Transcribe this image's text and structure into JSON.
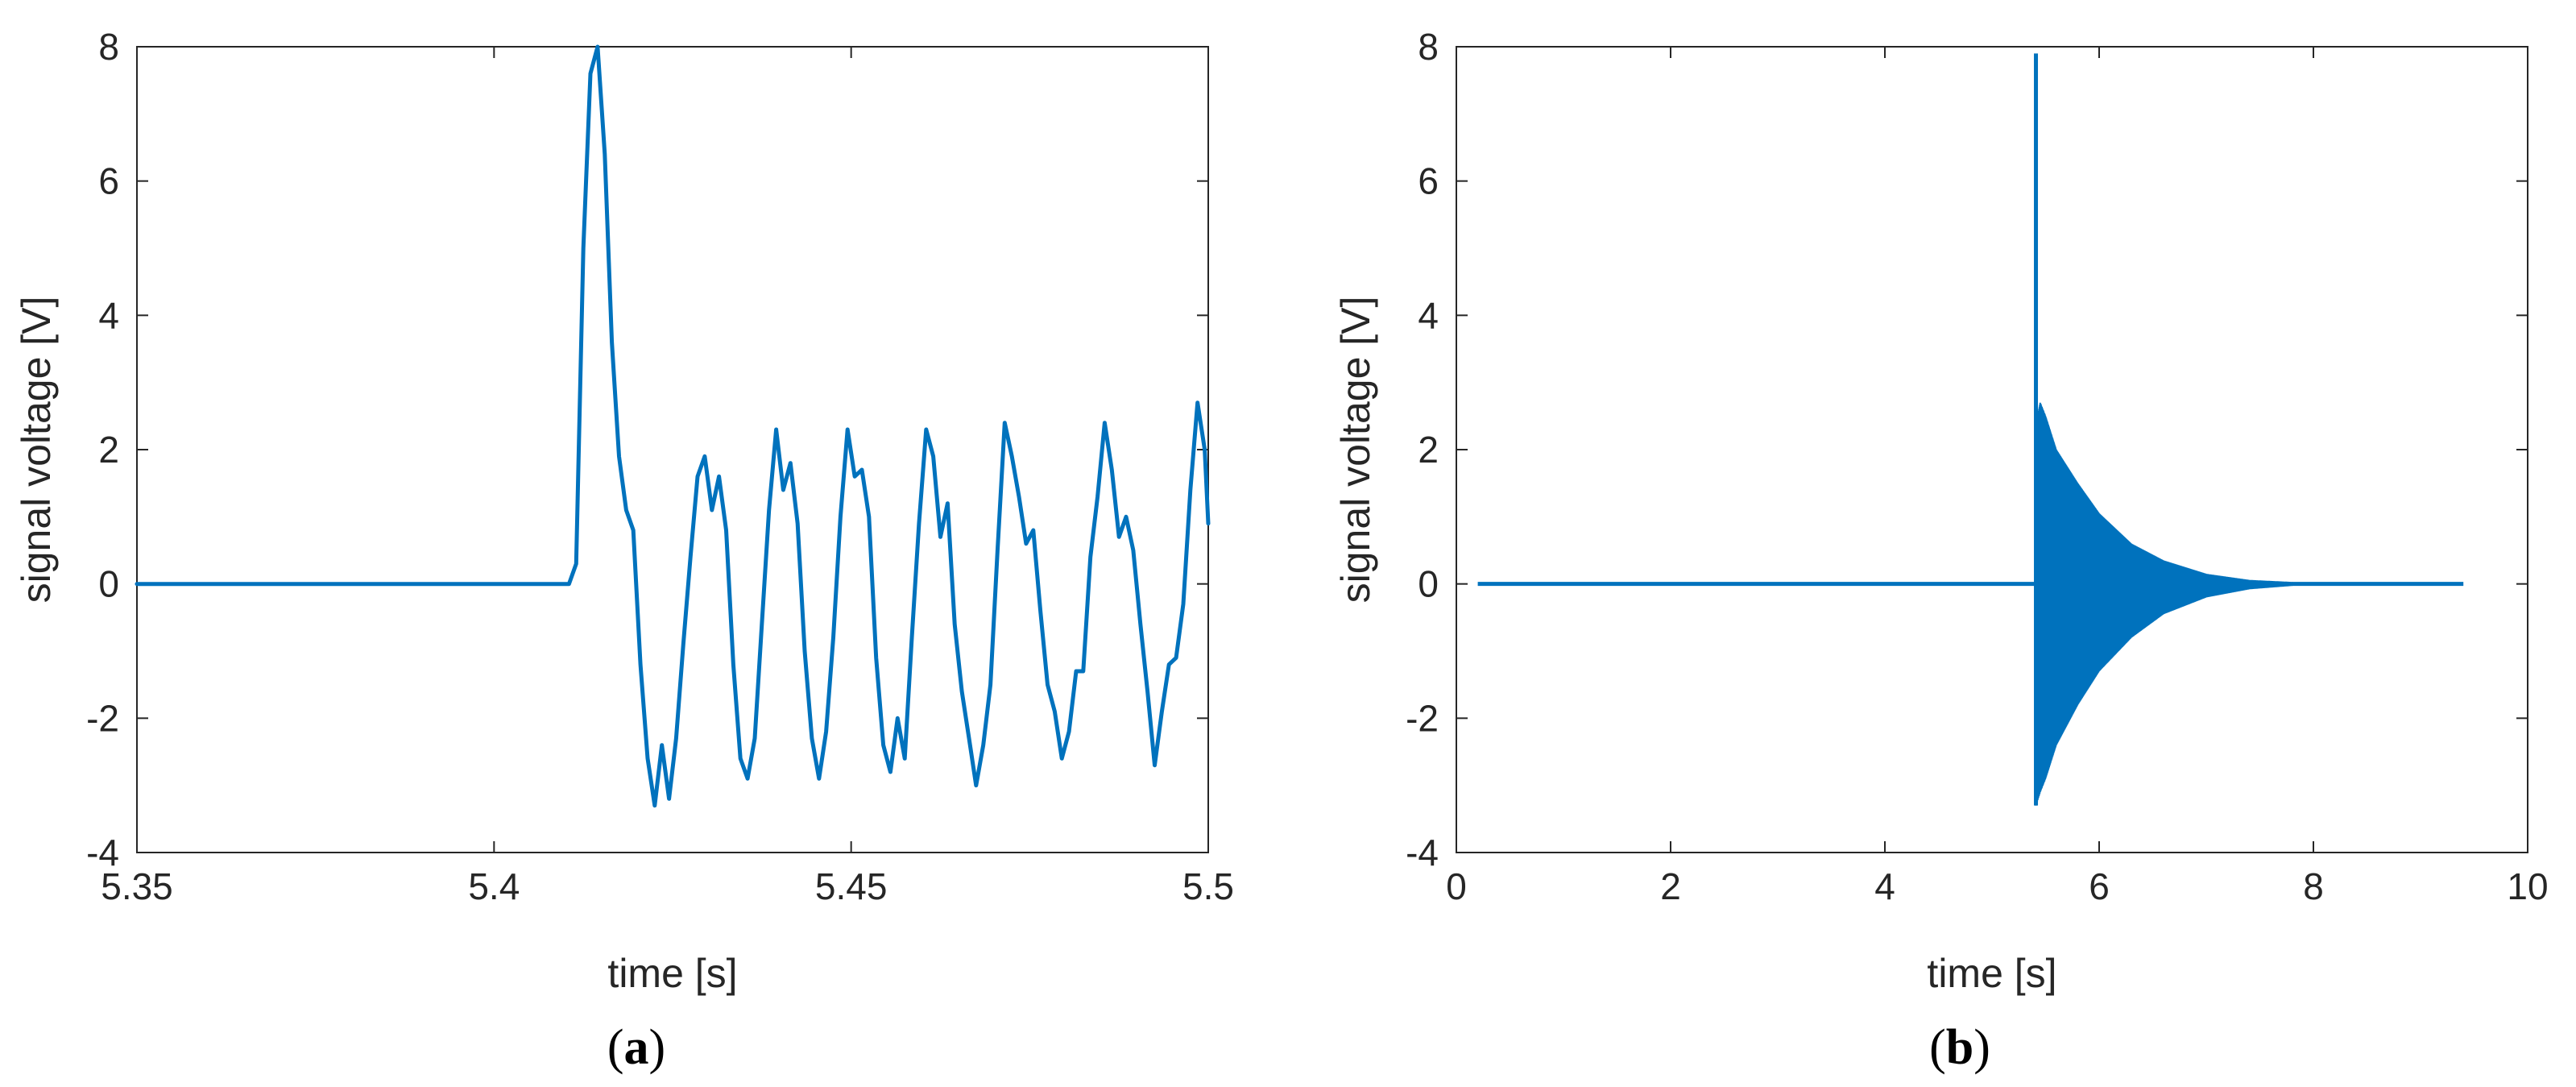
{
  "chart_data": [
    {
      "type": "line",
      "panel_label": "a",
      "xlabel": "time [s]",
      "ylabel": "signal voltage [V]",
      "xlim": [
        5.35,
        5.5
      ],
      "ylim": [
        -4,
        8
      ],
      "xticks": [
        5.35,
        5.4,
        5.45,
        5.5
      ],
      "xtick_labels": [
        "5.35",
        "5.4",
        "5.45",
        "5.5"
      ],
      "yticks": [
        -4,
        -2,
        0,
        2,
        4,
        6,
        8
      ],
      "ytick_labels": [
        "-4",
        "-2",
        "0",
        "2",
        "4",
        "6",
        "8"
      ],
      "grid": false,
      "line_color": "#0072BD",
      "series": [
        {
          "x": [
            5.35,
            5.38,
            5.4105,
            5.4115,
            5.4125,
            5.4135,
            5.4145,
            5.4155,
            5.4165,
            5.4175,
            5.4185,
            5.4195,
            5.4205,
            5.4215,
            5.4225,
            5.4235,
            5.4245,
            5.4255,
            5.4265,
            5.4275,
            5.4285,
            5.4295,
            5.4305,
            5.4315,
            5.4325,
            5.4335,
            5.4345,
            5.4355,
            5.4365,
            5.4375,
            5.4385,
            5.4395,
            5.4405,
            5.4415,
            5.4425,
            5.4435,
            5.4445,
            5.4455,
            5.4465,
            5.4475,
            5.4485,
            5.4495,
            5.4505,
            5.4515,
            5.4525,
            5.4535,
            5.4545,
            5.4555,
            5.4565,
            5.4575,
            5.4585,
            5.4595,
            5.4605,
            5.4615,
            5.4625,
            5.4635,
            5.4645,
            5.4655,
            5.4665,
            5.4675,
            5.4685,
            5.4695,
            5.4705,
            5.4715,
            5.4725,
            5.4735,
            5.4745,
            5.4755,
            5.4765,
            5.4775,
            5.4785,
            5.4795,
            5.4805,
            5.4815,
            5.4825,
            5.4835,
            5.4845,
            5.4855,
            5.4865,
            5.4875,
            5.4885,
            5.4895,
            5.4905,
            5.4915,
            5.4925,
            5.4935,
            5.4945,
            5.4955,
            5.4965,
            5.4975,
            5.4985,
            5.4995,
            5.5
          ],
          "y": [
            0.0,
            0.0,
            0.0,
            0.3,
            5.0,
            7.6,
            8.0,
            6.4,
            3.6,
            1.9,
            1.1,
            0.8,
            -1.2,
            -2.6,
            -3.3,
            -2.4,
            -3.2,
            -2.3,
            -0.9,
            0.4,
            1.6,
            1.9,
            1.1,
            1.6,
            0.8,
            -1.2,
            -2.6,
            -2.9,
            -2.3,
            -0.6,
            1.1,
            2.3,
            1.4,
            1.8,
            0.9,
            -1.0,
            -2.3,
            -2.9,
            -2.2,
            -0.8,
            1.0,
            2.3,
            1.6,
            1.7,
            1.0,
            -1.1,
            -2.4,
            -2.8,
            -2.0,
            -2.6,
            -0.8,
            0.9,
            2.3,
            1.9,
            0.7,
            1.2,
            -0.6,
            -1.6,
            -2.3,
            -3.0,
            -2.4,
            -1.5,
            0.5,
            2.4,
            1.9,
            1.3,
            0.6,
            0.8,
            -0.4,
            -1.5,
            -1.9,
            -2.6,
            -2.2,
            -1.3,
            -1.3,
            0.4,
            1.3,
            2.4,
            1.7,
            0.7,
            1.0,
            0.5,
            -0.6,
            -1.6,
            -2.7,
            -1.9,
            -1.2,
            -1.1,
            -0.3,
            1.4,
            2.7,
            2.0,
            0.9
          ]
        }
      ]
    },
    {
      "type": "line",
      "panel_label": "b",
      "xlabel": "time [s]",
      "ylabel": "signal voltage [V]",
      "xlim": [
        0,
        10
      ],
      "ylim": [
        -4,
        8
      ],
      "xticks": [
        0,
        2,
        4,
        6,
        8,
        10
      ],
      "xtick_labels": [
        "0",
        "2",
        "4",
        "6",
        "8",
        "10"
      ],
      "yticks": [
        -4,
        -2,
        0,
        2,
        4,
        6,
        8
      ],
      "ytick_labels": [
        "-4",
        "-2",
        "0",
        "2",
        "4",
        "6",
        "8"
      ],
      "grid": false,
      "line_color": "#0072BD",
      "series": [
        {
          "signal_start": 0.2,
          "signal_end": 9.4,
          "impulse_time": 5.41,
          "impulse_peak": 7.9,
          "impulse_trough": -3.3,
          "upper_envelope": {
            "t": [
              5.41,
              5.45,
              5.5,
              5.6,
              5.8,
              6.0,
              6.3,
              6.6,
              7.0,
              7.4,
              7.8
            ],
            "y": [
              2.4,
              2.7,
              2.5,
              2.0,
              1.5,
              1.05,
              0.6,
              0.35,
              0.15,
              0.06,
              0.03
            ]
          },
          "lower_envelope": {
            "t": [
              5.41,
              5.45,
              5.5,
              5.6,
              5.8,
              6.0,
              6.3,
              6.6,
              7.0,
              7.4,
              7.8
            ],
            "y": [
              -3.3,
              -3.1,
              -2.9,
              -2.4,
              -1.8,
              -1.3,
              -0.8,
              -0.45,
              -0.2,
              -0.08,
              -0.03
            ]
          }
        }
      ]
    }
  ]
}
